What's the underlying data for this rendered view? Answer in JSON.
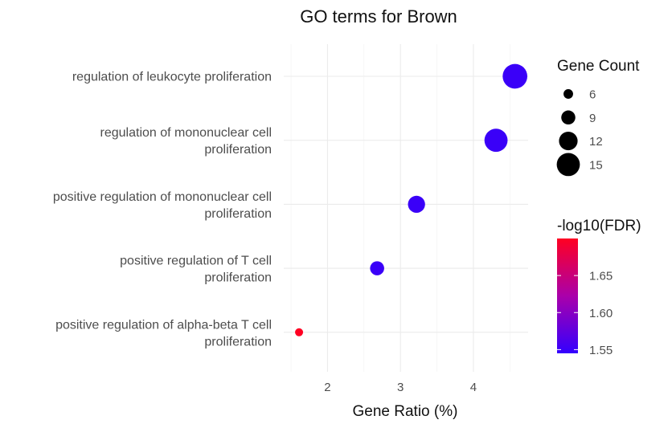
{
  "chart_data": {
    "type": "scatter",
    "title": "GO terms for Brown",
    "xlabel": "Gene Ratio (%)",
    "ylabel": "",
    "xlim": [
      1.4,
      4.75
    ],
    "x_ticks": [
      2,
      3,
      4
    ],
    "x_tick_labels": [
      "2",
      "3",
      "4"
    ],
    "categories": [
      [
        "regulation of leukocyte proliferation"
      ],
      [
        "regulation of mononuclear cell",
        "proliferation"
      ],
      [
        "positive regulation of mononuclear cell",
        "proliferation"
      ],
      [
        "positive regulation of T cell",
        "proliferation"
      ],
      [
        "positive regulation of alpha-beta T cell",
        "proliferation"
      ]
    ],
    "points": [
      {
        "term_index": 0,
        "gene_ratio": 4.57,
        "gene_count": 16,
        "neg_log10_fdr": 1.55
      },
      {
        "term_index": 1,
        "gene_ratio": 4.31,
        "gene_count": 15,
        "neg_log10_fdr": 1.55
      },
      {
        "term_index": 2,
        "gene_ratio": 3.22,
        "gene_count": 11,
        "neg_log10_fdr": 1.55
      },
      {
        "term_index": 3,
        "gene_ratio": 2.68,
        "gene_count": 9,
        "neg_log10_fdr": 1.55
      },
      {
        "term_index": 4,
        "gene_ratio": 1.61,
        "gene_count": 5,
        "neg_log10_fdr": 1.7
      }
    ],
    "size_legend": {
      "title": "Gene Count",
      "breaks": [
        6,
        9,
        12,
        15
      ],
      "labels": [
        "6",
        "9",
        "12",
        "15"
      ]
    },
    "color_legend": {
      "title": "-log10(FDR)",
      "range": [
        1.545,
        1.7
      ],
      "breaks": [
        1.55,
        1.6,
        1.65
      ],
      "labels": [
        "1.55",
        "1.60",
        "1.65"
      ],
      "low_color": "#3300ff",
      "high_color": "#ff0022"
    },
    "grid": true,
    "legend_position": "right"
  }
}
